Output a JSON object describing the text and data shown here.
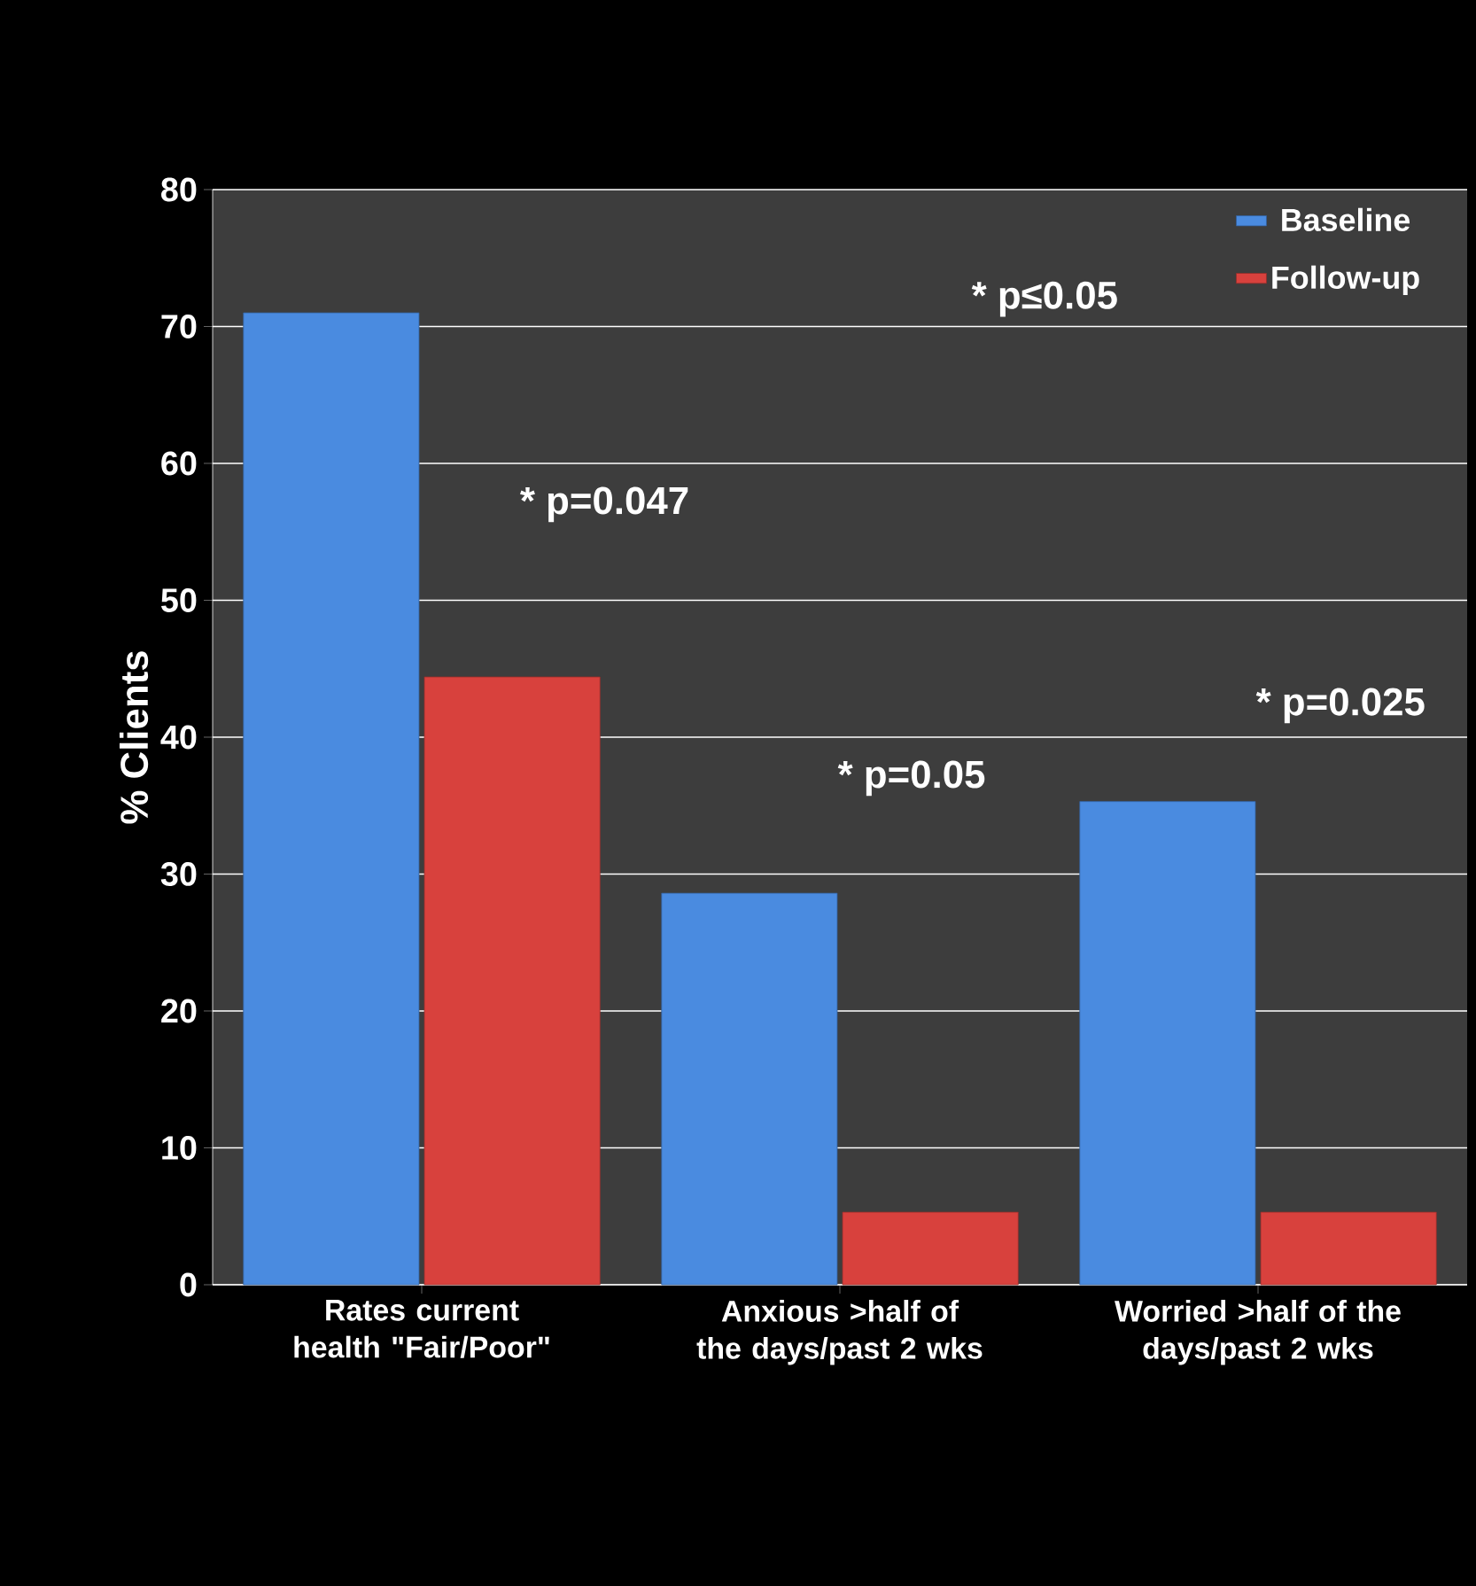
{
  "chart_data": {
    "type": "bar",
    "ylabel": "% Clients",
    "categories": [
      "Rates current health \"Fair/Poor\"",
      "Anxious >half of the days/past 2 wks",
      "Worried >half of the days/past 2 wks"
    ],
    "series": [
      {
        "name": "Baseline",
        "color": "#4a8be0",
        "values": [
          71,
          28.6,
          35.3
        ]
      },
      {
        "name": "Follow-up",
        "color": "#d8413d",
        "values": [
          44.4,
          5.3,
          5.3
        ]
      }
    ],
    "ylim": [
      0,
      80
    ],
    "yticks": [
      0,
      10,
      20,
      30,
      40,
      50,
      60,
      70,
      80
    ],
    "grid": "y",
    "legend": "top right",
    "annotations": [
      "* p≤0.05",
      "* p=0.047",
      "* p=0.05",
      "* p=0.025"
    ]
  }
}
